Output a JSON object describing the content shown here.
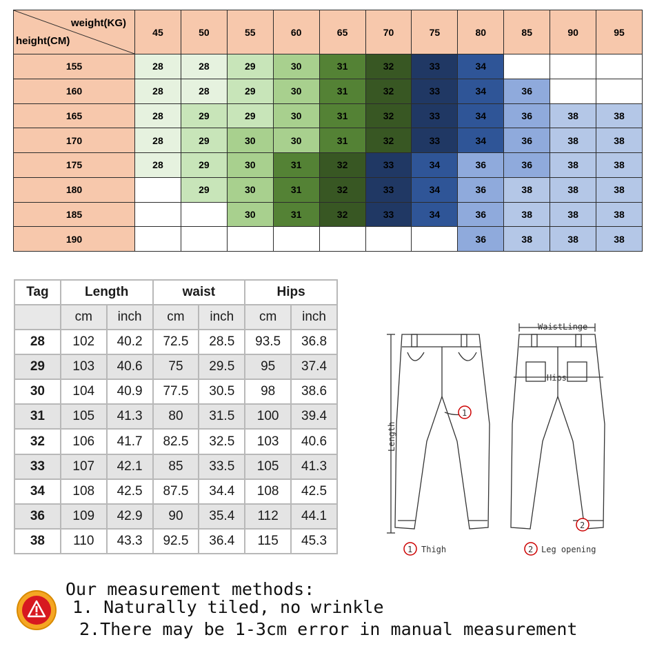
{
  "grid": {
    "weight_label": "weight(KG)",
    "height_label": "height(CM)",
    "weights": [
      "45",
      "50",
      "55",
      "60",
      "65",
      "70",
      "75",
      "80",
      "85",
      "90",
      "95"
    ],
    "rows": [
      {
        "height": "155",
        "cells": [
          "28",
          "28",
          "29",
          "30",
          "31",
          "32",
          "33",
          "34",
          "",
          "",
          ""
        ]
      },
      {
        "height": "160",
        "cells": [
          "28",
          "28",
          "29",
          "30",
          "31",
          "32",
          "33",
          "34",
          "36",
          "",
          ""
        ]
      },
      {
        "height": "165",
        "cells": [
          "28",
          "29",
          "29",
          "30",
          "31",
          "32",
          "33",
          "34",
          "36",
          "38",
          "38"
        ]
      },
      {
        "height": "170",
        "cells": [
          "28",
          "29",
          "30",
          "30",
          "31",
          "32",
          "33",
          "34",
          "36",
          "38",
          "38"
        ]
      },
      {
        "height": "175",
        "cells": [
          "28",
          "29",
          "30",
          "31",
          "32",
          "33",
          "34",
          "36",
          "36",
          "38",
          "38"
        ]
      },
      {
        "height": "180",
        "cells": [
          "",
          "29",
          "30",
          "31",
          "32",
          "33",
          "34",
          "36",
          "38",
          "38",
          "38"
        ]
      },
      {
        "height": "185",
        "cells": [
          "",
          "",
          "30",
          "31",
          "32",
          "33",
          "34",
          "36",
          "38",
          "38",
          "38"
        ]
      },
      {
        "height": "190",
        "cells": [
          "",
          "",
          "",
          "",
          "",
          "",
          "",
          "36",
          "38",
          "38",
          "38"
        ]
      }
    ],
    "colors": {
      "header": "#f7c8ac",
      "28": "#e6f2df",
      "29": "#c8e5b9",
      "30": "#a8d08e",
      "31": "#548235",
      "32": "#385723",
      "33": "#203864",
      "34": "#2f5597",
      "36": "#8faadc",
      "38": "#b4c7e7"
    }
  },
  "sizes": {
    "headers": {
      "tag": "Tag",
      "length": "Length",
      "waist": "waist",
      "hips": "Hips"
    },
    "units": [
      "cm",
      "inch",
      "cm",
      "inch",
      "cm",
      "inch"
    ],
    "rows": [
      [
        "28",
        "102",
        "40.2",
        "72.5",
        "28.5",
        "93.5",
        "36.8"
      ],
      [
        "29",
        "103",
        "40.6",
        "75",
        "29.5",
        "95",
        "37.4"
      ],
      [
        "30",
        "104",
        "40.9",
        "77.5",
        "30.5",
        "98",
        "38.6"
      ],
      [
        "31",
        "105",
        "41.3",
        "80",
        "31.5",
        "100",
        "39.4"
      ],
      [
        "32",
        "106",
        "41.7",
        "82.5",
        "32.5",
        "103",
        "40.6"
      ],
      [
        "33",
        "107",
        "42.1",
        "85",
        "33.5",
        "105",
        "41.3"
      ],
      [
        "34",
        "108",
        "42.5",
        "87.5",
        "34.4",
        "108",
        "42.5"
      ],
      [
        "36",
        "109",
        "42.9",
        "90",
        "35.4",
        "112",
        "44.1"
      ],
      [
        "38",
        "110",
        "43.3",
        "92.5",
        "36.4",
        "115",
        "45.3"
      ]
    ]
  },
  "diagram": {
    "waist_label": "WaistLinge",
    "hips_label": "Hips",
    "length_label": "Length",
    "marker_1": "1",
    "marker_2": "2",
    "legend_1": "Thigh",
    "legend_2": "Leg opening"
  },
  "notes": {
    "title": "Our measurement methods:",
    "line1": "1. Naturally tiled, no wrinkle",
    "line2": "2.There may be 1-3cm error in manual measurement",
    "icon": "warning-icon"
  }
}
